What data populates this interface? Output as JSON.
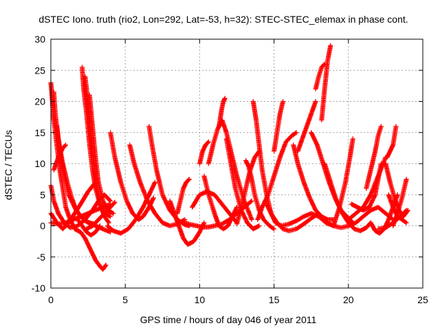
{
  "title": "dSTEC Iono. truth (rio2, Lon=292, Lat=-53, h=32): STEC-STEC_elemax in phase cont.",
  "chart_data": {
    "type": "scatter",
    "title": "dSTEC Iono. truth (rio2, Lon=292, Lat=-53, h=32): STEC-STEC_elemax in phase cont.",
    "xlabel": "GPS time / hours of day 046 of year 2011",
    "ylabel": "dSTEC  / TECUs",
    "xlim": [
      0,
      25
    ],
    "ylim": [
      -10,
      30
    ],
    "xticks": [
      0,
      5,
      10,
      15,
      20,
      25
    ],
    "yticks": [
      -10,
      -5,
      0,
      5,
      10,
      15,
      20,
      25,
      30
    ],
    "grid": true,
    "marker": "+",
    "color": "#ff0000",
    "arcs": [
      {
        "x": [
          0.0,
          0.1,
          0.2,
          0.4,
          0.6,
          0.8,
          1.0,
          1.3,
          1.6,
          2.0,
          2.3,
          2.7,
          3.0,
          3.3,
          3.5,
          3.7
        ],
        "y": [
          23,
          20,
          17,
          13,
          9,
          6,
          3,
          1,
          -0.5,
          -1,
          -2,
          -4,
          -5.5,
          -6.5,
          -7,
          -6.3
        ]
      },
      {
        "x": [
          0.2,
          0.3,
          0.5,
          0.8,
          1.1,
          1.4,
          1.7,
          2.0,
          2.3,
          2.6,
          2.9
        ],
        "y": [
          21.5,
          18,
          14,
          10,
          7,
          4.5,
          2.5,
          1.5,
          0.8,
          0.5,
          0.3
        ]
      },
      {
        "x": [
          0.4,
          0.6,
          0.9,
          1.2,
          1.6,
          2.0,
          2.5,
          3.0,
          3.5,
          4.0
        ],
        "y": [
          16,
          12,
          8,
          5,
          3,
          1.5,
          0.5,
          0,
          -0.5,
          -1
        ]
      },
      {
        "x": [
          0.0,
          0.2,
          0.5,
          0.9,
          1.3,
          1.8,
          2.3,
          2.8,
          3.2,
          3.6,
          4.0
        ],
        "y": [
          6.5,
          4,
          2,
          0.5,
          -0.3,
          0,
          1,
          2.5,
          4,
          5,
          4
        ]
      },
      {
        "x": [
          0.0,
          0.4,
          0.8,
          1.2,
          1.6,
          2.0,
          2.5,
          3.0
        ],
        "y": [
          2,
          0.5,
          -0.5,
          0.5,
          2,
          3.5,
          5.5,
          7
        ]
      },
      {
        "x": [
          0.2,
          0.5,
          0.8,
          1.0
        ],
        "y": [
          9,
          11,
          12.5,
          13
        ]
      },
      {
        "x": [
          0.0,
          0.5,
          1.0,
          1.5,
          2.0,
          2.5,
          3.0,
          3.5,
          4.0
        ],
        "y": [
          0.5,
          0.3,
          0.5,
          1,
          1.5,
          2,
          2.5,
          3,
          3.5
        ]
      },
      {
        "x": [
          2.1,
          2.2,
          2.4,
          2.6,
          2.8,
          3.0,
          3.3,
          3.6,
          4.0
        ],
        "y": [
          25.5,
          22,
          18,
          13,
          9,
          6,
          3.5,
          2,
          1.5
        ]
      },
      {
        "x": [
          2.3,
          2.5,
          2.7,
          2.9,
          3.1,
          3.3,
          3.6,
          3.9
        ],
        "y": [
          24,
          20,
          15,
          10,
          6,
          3.5,
          1.5,
          0.5
        ]
      },
      {
        "x": [
          2.6,
          2.8,
          3.0,
          3.2,
          3.5,
          3.8,
          4.2
        ],
        "y": [
          21,
          16,
          11,
          7,
          4,
          2.5,
          2
        ]
      },
      {
        "x": [
          1.8,
          2.1,
          2.4,
          2.7,
          3.0,
          3.3
        ],
        "y": [
          1,
          0,
          -1,
          -1.5,
          -1,
          0
        ]
      },
      {
        "x": [
          2.4,
          2.8,
          3.2,
          3.6,
          4.0,
          4.3
        ],
        "y": [
          -0.5,
          0,
          1,
          2,
          3,
          3.8
        ]
      },
      {
        "x": [
          4.0,
          4.3,
          4.7,
          5.1,
          5.5,
          5.9,
          6.2,
          6.6,
          6.9
        ],
        "y": [
          15,
          11,
          7,
          4,
          2,
          1,
          1.5,
          3,
          4.5
        ]
      },
      {
        "x": [
          3.8,
          4.2,
          4.7,
          5.2,
          5.7,
          6.2,
          6.6,
          7.0
        ],
        "y": [
          0,
          -0.8,
          -1.2,
          -0.5,
          1,
          3,
          5,
          7
        ]
      },
      {
        "x": [
          5.3,
          5.6,
          6.0,
          6.5,
          7.0,
          7.5,
          8.0,
          8.5,
          9.0
        ],
        "y": [
          13,
          10,
          7,
          4,
          2,
          0.5,
          0,
          0.3,
          1
        ]
      },
      {
        "x": [
          6.6,
          6.8,
          7.1,
          7.5,
          8.0,
          8.5,
          9.0,
          9.3
        ],
        "y": [
          16,
          13,
          9,
          5,
          2.5,
          1,
          0.2,
          0
        ]
      },
      {
        "x": [
          8.0,
          8.3,
          8.6,
          8.9,
          9.2,
          9.6,
          10.0,
          10.3
        ],
        "y": [
          4,
          2,
          0,
          -2,
          -3,
          -2.5,
          -1,
          0.5
        ]
      },
      {
        "x": [
          8.5,
          8.7,
          8.9,
          9.1,
          9.3
        ],
        "y": [
          2,
          4,
          6,
          7,
          7.5
        ]
      },
      {
        "x": [
          9.5,
          10.0,
          10.5,
          11.0,
          11.5,
          12.0,
          12.5
        ],
        "y": [
          3,
          5,
          5.5,
          5,
          3.5,
          2,
          0.5
        ]
      },
      {
        "x": [
          9.0,
          9.4,
          9.8,
          10.2,
          10.6,
          11.0,
          11.5,
          12.0,
          12.5,
          13.0,
          13.5
        ],
        "y": [
          0.5,
          0.2,
          0,
          -0.2,
          -0.2,
          0,
          0.3,
          1,
          2,
          3,
          4
        ]
      },
      {
        "x": [
          10.0,
          10.2,
          10.4,
          10.6
        ],
        "y": [
          10,
          12,
          13,
          13.5
        ]
      },
      {
        "x": [
          10.3,
          10.6,
          11.0,
          11.3,
          11.6,
          11.9,
          12.2,
          12.5
        ],
        "y": [
          8,
          5,
          2,
          0,
          -0.5,
          0,
          1.5,
          3
        ]
      },
      {
        "x": [
          10.6,
          10.9,
          11.2,
          11.5,
          11.8,
          12.1,
          12.5,
          13.0,
          13.5
        ],
        "y": [
          10,
          13,
          15.5,
          17,
          15,
          12,
          8,
          4,
          1
        ]
      },
      {
        "x": [
          11.3,
          11.4,
          11.5,
          11.6,
          11.7
        ],
        "y": [
          16,
          17.5,
          19,
          20,
          20.5
        ]
      },
      {
        "x": [
          11.8,
          12.1,
          12.4,
          12.8,
          13.2,
          13.6,
          14.0
        ],
        "y": [
          14,
          10,
          6,
          2.5,
          0.5,
          -0.5,
          0
        ]
      },
      {
        "x": [
          12.5,
          12.8,
          13.1,
          13.4,
          13.7,
          14.0
        ],
        "y": [
          0.3,
          3,
          6,
          9,
          11,
          12
        ]
      },
      {
        "x": [
          13.1,
          13.3,
          13.5,
          13.7,
          14.0,
          14.3,
          14.7,
          15.0
        ],
        "y": [
          10.5,
          9.5,
          7.5,
          5,
          2.5,
          1,
          0,
          -0.5
        ]
      },
      {
        "x": [
          13.6,
          13.8,
          14.0,
          14.2,
          14.5,
          14.8,
          15.1,
          15.5
        ],
        "y": [
          20,
          17,
          13,
          9,
          5,
          2,
          0.5,
          0
        ]
      },
      {
        "x": [
          13.9,
          14.2,
          14.6,
          15.0,
          15.4,
          15.8,
          16.2,
          16.5
        ],
        "y": [
          1,
          3,
          5,
          8,
          11,
          13.5,
          14.5,
          15
        ]
      },
      {
        "x": [
          14.5,
          14.8,
          15.2,
          15.6,
          16.0,
          16.5,
          17.0,
          17.5,
          18.0
        ],
        "y": [
          3.5,
          2,
          0.5,
          -0.5,
          -0.8,
          -0.5,
          0.3,
          1.2,
          2
        ]
      },
      {
        "x": [
          15.0,
          15.2,
          15.4,
          15.6
        ],
        "y": [
          12,
          15,
          18,
          20
        ]
      },
      {
        "x": [
          15.5,
          16.0,
          16.5,
          17.0,
          17.5,
          18.0,
          18.5,
          19.0
        ],
        "y": [
          0,
          0.3,
          0.8,
          1.5,
          2,
          1.5,
          0.5,
          0
        ]
      },
      {
        "x": [
          16.3,
          16.6,
          17.0,
          17.4,
          17.8,
          18.2,
          18.6,
          19.0
        ],
        "y": [
          13,
          10,
          7,
          4.5,
          2.5,
          1.5,
          1,
          1
        ]
      },
      {
        "x": [
          16.6,
          16.9,
          17.2,
          17.5,
          17.8
        ],
        "y": [
          12,
          14,
          16,
          18,
          20
        ]
      },
      {
        "x": [
          17.8,
          18.0,
          18.2,
          18.4
        ],
        "y": [
          22,
          24,
          25.5,
          26
        ]
      },
      {
        "x": [
          17.5,
          17.9,
          18.3,
          18.7,
          19.1,
          19.5,
          19.9,
          20.3
        ],
        "y": [
          15,
          13,
          10,
          7,
          4.5,
          2.5,
          1.5,
          0.5
        ]
      },
      {
        "x": [
          18.2,
          18.4,
          18.6,
          18.8
        ],
        "y": [
          17,
          22,
          26.5,
          29
        ]
      },
      {
        "x": [
          18.4,
          18.8,
          19.2,
          19.6,
          20.0,
          20.4,
          20.8,
          21.2,
          21.5
        ],
        "y": [
          10,
          7,
          4,
          2,
          0.5,
          -0.5,
          -0.8,
          -0.3,
          0.5
        ]
      },
      {
        "x": [
          19.0,
          19.4,
          19.8,
          20.1,
          20.3
        ],
        "y": [
          0,
          3,
          7,
          11,
          14
        ]
      },
      {
        "x": [
          18.5,
          19.0,
          19.5,
          20.0,
          20.5,
          21.0,
          21.5,
          22.0,
          22.5,
          23.0
        ],
        "y": [
          0.5,
          0,
          -0.3,
          0,
          0.5,
          1.5,
          2.5,
          3,
          2,
          1
        ]
      },
      {
        "x": [
          20.0,
          20.5,
          21.0,
          21.5,
          22.0,
          22.5
        ],
        "y": [
          1,
          2,
          3,
          5,
          8,
          11
        ]
      },
      {
        "x": [
          20.2,
          20.6,
          21.0,
          21.4,
          21.8,
          22.2
        ],
        "y": [
          3.5,
          3,
          2.5,
          3,
          5,
          10
        ]
      },
      {
        "x": [
          21.2,
          21.5,
          21.8,
          22.0,
          22.2
        ],
        "y": [
          6,
          9,
          12,
          14.5,
          16
        ]
      },
      {
        "x": [
          21.5,
          21.8,
          22.1,
          22.4,
          22.7,
          23.0,
          23.3
        ],
        "y": [
          0.5,
          -0.8,
          -1.2,
          -0.5,
          1,
          3,
          5
        ]
      },
      {
        "x": [
          22.6,
          22.8,
          23.0,
          23.2
        ],
        "y": [
          11,
          12,
          13,
          16
        ]
      },
      {
        "x": [
          22.7,
          23.0,
          23.3,
          23.6,
          23.9
        ],
        "y": [
          5,
          3,
          1.5,
          1,
          0.5
        ]
      },
      {
        "x": [
          22.5,
          22.8,
          23.1,
          23.4,
          23.7,
          24.0
        ],
        "y": [
          10,
          7,
          4.5,
          2.5,
          1.5,
          2.5
        ]
      },
      {
        "x": [
          23.0,
          23.3,
          23.6,
          23.9
        ],
        "y": [
          0,
          2,
          4.5,
          7.5
        ]
      },
      {
        "x": [
          22.0,
          22.5,
          23.0,
          23.5,
          23.9
        ],
        "y": [
          -0.5,
          -0.3,
          0.5,
          1.5,
          2.5
        ]
      }
    ]
  }
}
